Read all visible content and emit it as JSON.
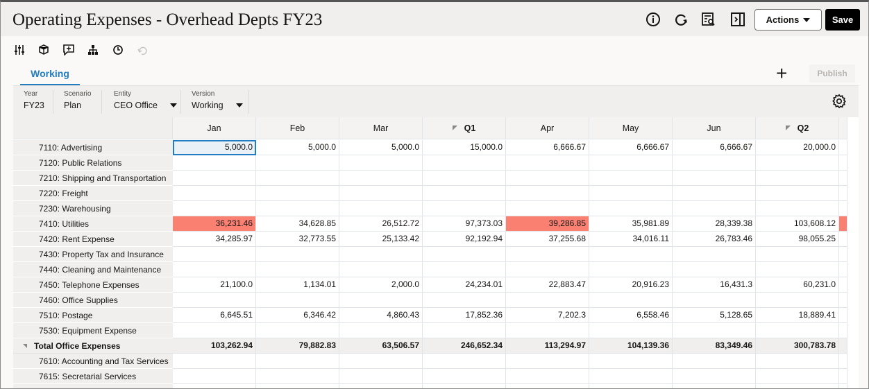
{
  "header": {
    "title": "Operating Expenses - Overhead Depts FY23",
    "actions_label": "Actions",
    "save_label": "Save",
    "icons": [
      "info-icon",
      "refresh-icon",
      "inspect-icon",
      "panel-toggle-icon"
    ]
  },
  "toolbar": {
    "icons": [
      "adjust-icon",
      "data-cube-icon",
      "comment-icon",
      "hierarchy-icon",
      "history-icon",
      "undo-icon"
    ]
  },
  "tabs": [
    {
      "label": "Working",
      "active": true
    }
  ],
  "publish_label": "Publish",
  "pov": [
    {
      "label": "Year",
      "value": "FY23",
      "dropdown": false
    },
    {
      "label": "Scenario",
      "value": "Plan",
      "dropdown": false
    },
    {
      "label": "Entity",
      "value": "CEO Office",
      "dropdown": true
    },
    {
      "label": "Version",
      "value": "Working",
      "dropdown": true
    }
  ],
  "colors": {
    "accent": "#227cc2",
    "highlight": "#fa8072"
  },
  "grid": {
    "columns": [
      {
        "label": "Jan"
      },
      {
        "label": "Feb"
      },
      {
        "label": "Mar"
      },
      {
        "label": "Q1",
        "collapsible": true
      },
      {
        "label": "Apr"
      },
      {
        "label": "May"
      },
      {
        "label": "Jun"
      },
      {
        "label": "Q2",
        "collapsible": true
      }
    ],
    "rows": [
      {
        "label": "7110: Advertising",
        "values": [
          "5,000.0",
          "5,000.0",
          "5,000.0",
          "15,000.0",
          "6,666.67",
          "6,666.67",
          "6,666.67",
          "20,000.0"
        ]
      },
      {
        "label": "7120: Public Relations",
        "values": [
          "",
          "",
          "",
          "",
          "",
          "",
          "",
          ""
        ]
      },
      {
        "label": "7210: Shipping and Transportation",
        "values": [
          "",
          "",
          "",
          "",
          "",
          "",
          "",
          ""
        ]
      },
      {
        "label": "7220: Freight",
        "values": [
          "",
          "",
          "",
          "",
          "",
          "",
          "",
          ""
        ]
      },
      {
        "label": "7230: Warehousing",
        "values": [
          "",
          "",
          "",
          "",
          "",
          "",
          "",
          ""
        ]
      },
      {
        "label": "7410: Utilities",
        "values": [
          "36,231.46",
          "34,628.85",
          "26,512.72",
          "97,373.03",
          "39,286.85",
          "35,981.89",
          "28,339.38",
          "103,608.12"
        ],
        "highlighted": [
          0,
          4,
          8
        ]
      },
      {
        "label": "7420: Rent Expense",
        "values": [
          "34,285.97",
          "32,773.55",
          "25,133.42",
          "92,192.94",
          "37,255.68",
          "34,016.11",
          "26,783.46",
          "98,055.25"
        ]
      },
      {
        "label": "7430: Property Tax and Insurance",
        "values": [
          "",
          "",
          "",
          "",
          "",
          "",
          "",
          ""
        ]
      },
      {
        "label": "7440: Cleaning and Maintenance",
        "values": [
          "",
          "",
          "",
          "",
          "",
          "",
          "",
          ""
        ]
      },
      {
        "label": "7450: Telephone Expenses",
        "values": [
          "21,100.0",
          "1,134.01",
          "2,000.0",
          "24,234.01",
          "22,883.47",
          "20,916.23",
          "16,431.3",
          "60,231.0"
        ]
      },
      {
        "label": "7460: Office Supplies",
        "values": [
          "",
          "",
          "",
          "",
          "",
          "",
          "",
          ""
        ]
      },
      {
        "label": "7510: Postage",
        "values": [
          "6,645.51",
          "6,346.42",
          "4,860.43",
          "17,852.36",
          "7,202.3",
          "6,558.46",
          "5,128.65",
          "18,889.41"
        ]
      },
      {
        "label": "7530: Equipment Expense",
        "values": [
          "",
          "",
          "",
          "",
          "",
          "",
          "",
          ""
        ]
      },
      {
        "label": "Total Office Expenses",
        "total": true,
        "values": [
          "103,262.94",
          "79,882.83",
          "63,506.57",
          "246,652.34",
          "113,294.97",
          "104,139.36",
          "83,349.46",
          "300,783.78"
        ]
      },
      {
        "label": "7610: Accounting and Tax Services",
        "values": [
          "",
          "",
          "",
          "",
          "",
          "",
          "",
          ""
        ]
      },
      {
        "label": "7615: Secretarial Services",
        "values": [
          "",
          "",
          "",
          "",
          "",
          "",
          "",
          ""
        ]
      }
    ]
  }
}
